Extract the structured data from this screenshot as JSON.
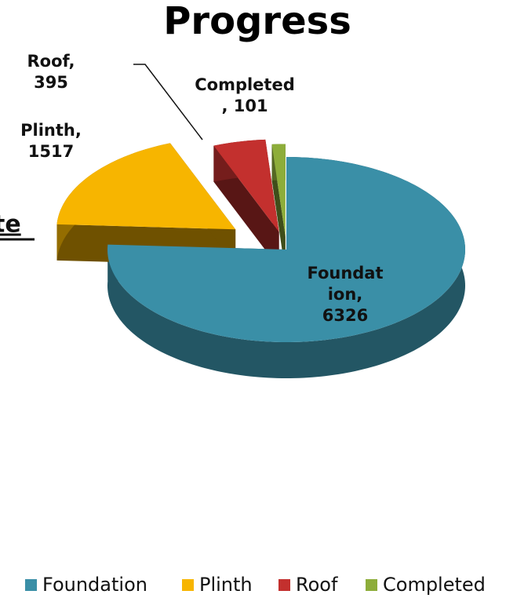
{
  "chart_data": {
    "type": "pie3d",
    "title": "Progress",
    "categories": [
      "Foundation",
      "Plinth",
      "Roof",
      "Completed"
    ],
    "values": [
      6326,
      1517,
      395,
      101
    ],
    "value_labels": [
      "Foundation, 6326",
      "Plinth, 1517",
      "Roof, 395",
      "Completed, 101"
    ],
    "colors": [
      "#3a8fa7",
      "#f7b500",
      "#c3302e",
      "#8dad3a"
    ],
    "legend": "bottom",
    "annotations": [
      "te"
    ]
  }
}
